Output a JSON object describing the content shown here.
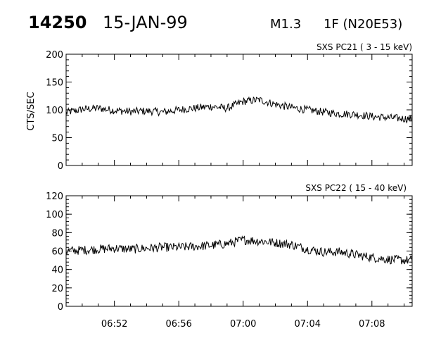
{
  "header": {
    "event_number": "14250",
    "date": "15-JAN-99",
    "class": "M1.3",
    "optical": "1F (N20E53)"
  },
  "chart_data": [
    {
      "type": "line",
      "title": "SXS PC21  (  3 - 15 keV)",
      "ylabel": "CTS/SEC",
      "xlabel": "",
      "xlim": [
        "06:49",
        "07:10:30"
      ],
      "ylim": [
        0,
        200
      ],
      "yticks": [
        "0",
        "50",
        "100",
        "150",
        "200"
      ],
      "xticks": [
        "06:52",
        "06:56",
        "07:00",
        "07:04",
        "07:08"
      ],
      "series": [
        {
          "x": [
            "06:49",
            "06:50",
            "06:51",
            "06:52",
            "06:53",
            "06:54",
            "06:55",
            "06:56",
            "06:57",
            "06:58",
            "06:59",
            "07:00",
            "07:01",
            "07:02",
            "07:03",
            "07:04",
            "07:05",
            "07:06",
            "07:07",
            "07:08",
            "07:09",
            "07:10"
          ],
          "values": [
            95,
            101,
            103,
            99,
            97,
            98,
            96,
            100,
            103,
            106,
            103,
            115,
            118,
            110,
            104,
            100,
            96,
            93,
            92,
            88,
            86,
            84
          ]
        }
      ]
    },
    {
      "type": "line",
      "title": "SXS PC22  ( 15 - 40 keV)",
      "ylabel": "",
      "xlabel": "",
      "xlim": [
        "06:49",
        "07:10:30"
      ],
      "ylim": [
        0,
        120
      ],
      "yticks": [
        "0",
        "20",
        "40",
        "60",
        "80",
        "100",
        "120"
      ],
      "xticks": [
        "06:52",
        "06:56",
        "07:00",
        "07:04",
        "07:08"
      ],
      "series": [
        {
          "x": [
            "06:49",
            "06:50",
            "06:51",
            "06:52",
            "06:53",
            "06:54",
            "06:55",
            "06:56",
            "06:57",
            "06:58",
            "06:59",
            "07:00",
            "07:01",
            "07:02",
            "07:03",
            "07:04",
            "07:05",
            "07:06",
            "07:07",
            "07:08",
            "07:09",
            "07:10"
          ],
          "values": [
            60,
            61,
            62,
            63,
            62,
            63,
            64,
            64,
            65,
            66,
            68,
            72,
            71,
            69,
            67,
            62,
            59,
            59,
            56,
            53,
            51,
            50
          ]
        }
      ]
    }
  ]
}
